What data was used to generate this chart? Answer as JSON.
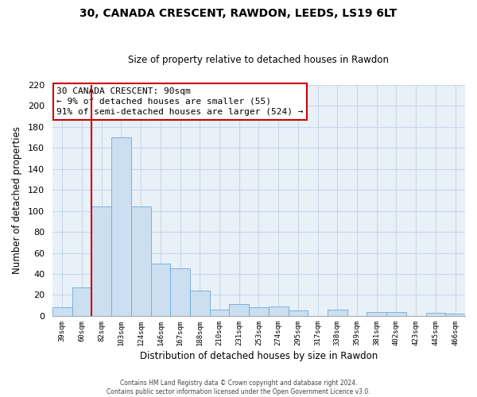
{
  "title": "30, CANADA CRESCENT, RAWDON, LEEDS, LS19 6LT",
  "subtitle": "Size of property relative to detached houses in Rawdon",
  "xlabel": "Distribution of detached houses by size in Rawdon",
  "ylabel": "Number of detached properties",
  "categories": [
    "39sqm",
    "60sqm",
    "82sqm",
    "103sqm",
    "124sqm",
    "146sqm",
    "167sqm",
    "188sqm",
    "210sqm",
    "231sqm",
    "253sqm",
    "274sqm",
    "295sqm",
    "317sqm",
    "338sqm",
    "359sqm",
    "381sqm",
    "402sqm",
    "423sqm",
    "445sqm",
    "466sqm"
  ],
  "values": [
    8,
    27,
    104,
    170,
    104,
    50,
    45,
    24,
    6,
    11,
    8,
    9,
    5,
    0,
    6,
    0,
    4,
    4,
    0,
    3,
    2
  ],
  "bar_color": "#ccdff0",
  "bar_edge_color": "#6baad8",
  "vline_color": "#cc0000",
  "ylim": [
    0,
    220
  ],
  "yticks": [
    0,
    20,
    40,
    60,
    80,
    100,
    120,
    140,
    160,
    180,
    200,
    220
  ],
  "annotation_title": "30 CANADA CRESCENT: 90sqm",
  "annotation_line1": "← 9% of detached houses are smaller (55)",
  "annotation_line2": "91% of semi-detached houses are larger (524) →",
  "annotation_box_color": "white",
  "annotation_box_edge": "#cc0000",
  "footer_line1": "Contains HM Land Registry data © Crown copyright and database right 2024.",
  "footer_line2": "Contains public sector information licensed under the Open Government Licence v3.0.",
  "grid_color": "#c8d8e8",
  "background_color": "#e8f0f8"
}
